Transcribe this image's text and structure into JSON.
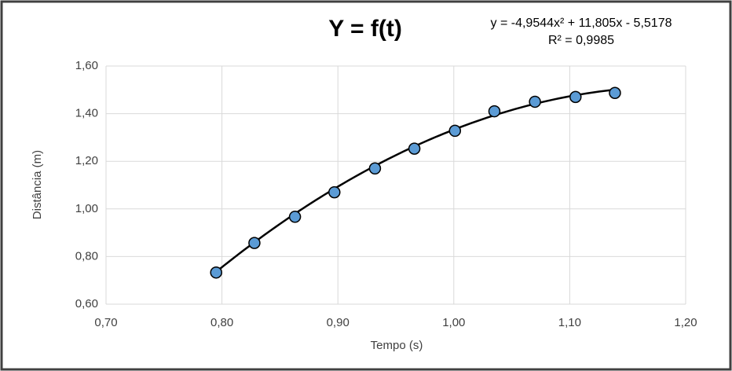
{
  "chart_data": {
    "type": "scatter",
    "title": "Y = f(t)",
    "x_label": "Tempo (s)",
    "y_label": "Distância (m)",
    "series": [
      {
        "name": "Distância",
        "color": "#5b9bd5",
        "x": [
          0.795,
          0.828,
          0.863,
          0.897,
          0.932,
          0.966,
          1.001,
          1.035,
          1.07,
          1.105,
          1.139
        ],
        "values": [
          0.733,
          0.857,
          0.967,
          1.07,
          1.17,
          1.253,
          1.328,
          1.41,
          1.45,
          1.47,
          1.487
        ]
      }
    ],
    "trendline": {
      "type": "polynomial",
      "coefficients": [
        -4.9544,
        11.805,
        -5.5178
      ],
      "equation": "y = -4,9544x² + 11,805x - 5,5178",
      "r_squared_label": "R² = 0,9985",
      "color": "#000000"
    },
    "xlim": [
      0.7,
      1.2
    ],
    "ylim": [
      0.6,
      1.6
    ],
    "xticks": [
      {
        "value": 0.7,
        "label": "0,70"
      },
      {
        "value": 0.8,
        "label": "0,80"
      },
      {
        "value": 0.9,
        "label": "0,90"
      },
      {
        "value": 1.0,
        "label": "1,00"
      },
      {
        "value": 1.1,
        "label": "1,10"
      },
      {
        "value": 1.2,
        "label": "1,20"
      }
    ],
    "yticks": [
      {
        "value": 0.6,
        "label": "0,60"
      },
      {
        "value": 0.8,
        "label": "0,80"
      },
      {
        "value": 1.0,
        "label": "1,00"
      },
      {
        "value": 1.2,
        "label": "1,20"
      },
      {
        "value": 1.4,
        "label": "1,40"
      },
      {
        "value": 1.6,
        "label": "1,60"
      }
    ],
    "grid": true
  }
}
